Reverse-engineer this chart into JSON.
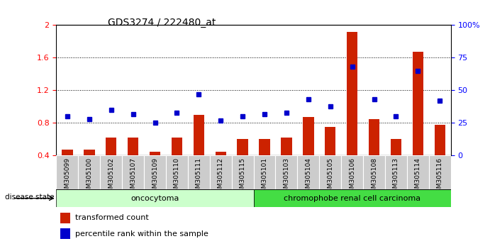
{
  "title": "GDS3274 / 222480_at",
  "samples": [
    "GSM305099",
    "GSM305100",
    "GSM305102",
    "GSM305107",
    "GSM305109",
    "GSM305110",
    "GSM305111",
    "GSM305112",
    "GSM305115",
    "GSM305101",
    "GSM305103",
    "GSM305104",
    "GSM305105",
    "GSM305106",
    "GSM305108",
    "GSM305113",
    "GSM305114",
    "GSM305116"
  ],
  "bar_values": [
    0.47,
    0.47,
    0.62,
    0.62,
    0.45,
    0.62,
    0.9,
    0.45,
    0.6,
    0.6,
    0.62,
    0.87,
    0.75,
    1.92,
    0.85,
    0.6,
    1.67,
    0.78
  ],
  "dot_percentiles": [
    30,
    28,
    35,
    32,
    25,
    33,
    47,
    27,
    30,
    32,
    33,
    43,
    38,
    68,
    43,
    30,
    65,
    42
  ],
  "bar_color": "#CC2200",
  "dot_color": "#0000CC",
  "ylim_left": [
    0.4,
    2.0
  ],
  "ylim_right": [
    0,
    100
  ],
  "yticks_left": [
    0.4,
    0.8,
    1.2,
    1.6,
    2.0
  ],
  "ytick_labels_left": [
    "0.4",
    "0.8",
    "1.2",
    "1.6",
    "2"
  ],
  "yticks_right": [
    0,
    25,
    50,
    75,
    100
  ],
  "ytick_labels_right": [
    "0",
    "25",
    "50",
    "75",
    "100%"
  ],
  "grid_values": [
    0.8,
    1.2,
    1.6
  ],
  "bar_bottom": 0.4,
  "groups": [
    {
      "label": "oncocytoma",
      "start": 0,
      "end": 9,
      "color": "#CCFFCC"
    },
    {
      "label": "chromophobe renal cell carcinoma",
      "start": 9,
      "end": 18,
      "color": "#44DD44"
    }
  ],
  "disease_state_label": "disease state",
  "legend": [
    {
      "label": "transformed count",
      "color": "#CC2200"
    },
    {
      "label": "percentile rank within the sample",
      "color": "#0000CC"
    }
  ],
  "background_color": "#FFFFFF",
  "tick_bg_color": "#CCCCCC"
}
